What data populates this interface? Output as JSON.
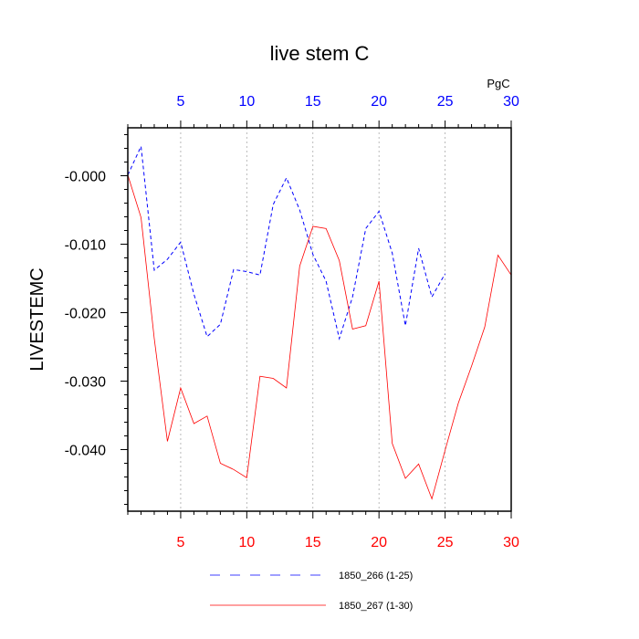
{
  "chart_data": {
    "type": "line",
    "title": "live stem C",
    "ylabel": "LIVESTEMC",
    "units": "PgC",
    "xlim": [
      1,
      30
    ],
    "ylim": [
      -0.049,
      0.007
    ],
    "x_ticks": [
      5,
      10,
      15,
      20,
      25,
      30
    ],
    "y_ticks": [
      0.0,
      -0.01,
      -0.02,
      -0.03,
      -0.04
    ],
    "y_tick_labels": [
      "-0.000",
      "-0.010",
      "-0.020",
      "-0.030",
      "-0.040"
    ],
    "grid": "vertical dashed at major x ticks",
    "series": [
      {
        "name": "1850_266 (1-25)",
        "axis": "top",
        "color": "#0000ff",
        "dash": "dashed",
        "x": [
          1,
          2,
          3,
          4,
          5,
          6,
          7,
          8,
          9,
          10,
          11,
          12,
          13,
          14,
          15,
          16,
          17,
          18,
          19,
          20,
          21,
          22,
          23,
          24,
          25
        ],
        "values": [
          0.0001,
          0.0043,
          -0.0138,
          -0.0122,
          -0.0097,
          -0.0173,
          -0.0235,
          -0.0217,
          -0.0137,
          -0.014,
          -0.0145,
          -0.0042,
          -0.0003,
          -0.005,
          -0.0115,
          -0.0154,
          -0.0238,
          -0.0177,
          -0.0077,
          -0.0052,
          -0.0113,
          -0.0219,
          -0.0106,
          -0.0177,
          -0.0143
        ]
      },
      {
        "name": "1850_267 (1-30)",
        "axis": "bottom",
        "color": "#ff0000",
        "dash": "solid",
        "x": [
          1,
          2,
          3,
          4,
          5,
          6,
          7,
          8,
          9,
          10,
          11,
          12,
          13,
          14,
          15,
          16,
          17,
          18,
          19,
          20,
          21,
          22,
          23,
          24,
          25,
          26,
          27,
          28,
          29,
          30
        ],
        "values": [
          0.0001,
          -0.0061,
          -0.0238,
          -0.0388,
          -0.031,
          -0.0362,
          -0.0351,
          -0.042,
          -0.0429,
          -0.0441,
          -0.0293,
          -0.0296,
          -0.031,
          -0.0132,
          -0.0074,
          -0.0077,
          -0.0124,
          -0.0224,
          -0.0219,
          -0.0154,
          -0.0391,
          -0.0442,
          -0.0421,
          -0.0472,
          -0.0401,
          -0.0332,
          -0.0278,
          -0.0221,
          -0.0116,
          -0.0145
        ]
      }
    ],
    "legend": "bottom-center"
  }
}
